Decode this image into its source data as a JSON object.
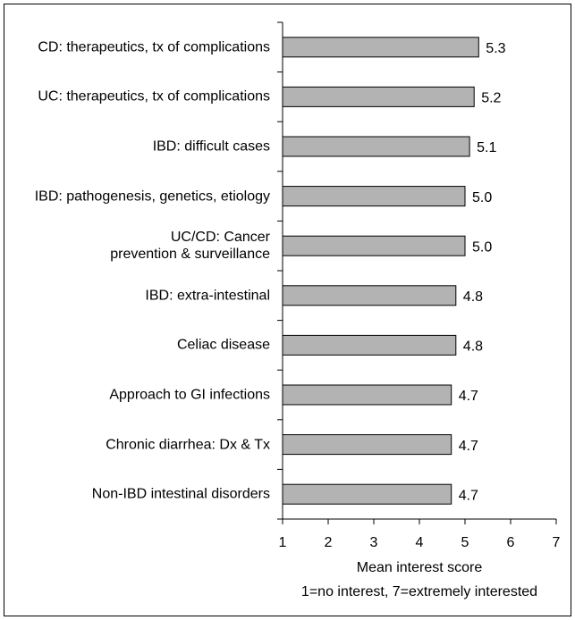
{
  "chart_data": {
    "type": "barh",
    "categories": [
      "CD: therapeutics, tx of complications",
      "UC: therapeutics, tx of complications",
      "IBD: difficult cases",
      "IBD: pathogenesis, genetics, etiology",
      "UC/CD: Cancer prevention & surveillance",
      "IBD: extra-intestinal",
      "Celiac disease",
      "Approach to GI infections",
      "Chronic diarrhea: Dx & Tx",
      "Non-IBD intestinal disorders"
    ],
    "values": [
      5.3,
      5.2,
      5.1,
      5.0,
      5.0,
      4.8,
      4.8,
      4.7,
      4.7,
      4.7
    ],
    "value_labels": [
      "5.3",
      "5.2",
      "5.1",
      "5.0",
      "5.0",
      "4.8",
      "4.8",
      "4.7",
      "4.7",
      "4.7"
    ],
    "color": "#b3b3b3",
    "xlim": [
      1,
      7
    ],
    "xticks": [
      1,
      2,
      3,
      4,
      5,
      6,
      7
    ],
    "xlabel": "Mean interest score",
    "xlabel_note": "1=no interest, 7=extremely interested"
  }
}
